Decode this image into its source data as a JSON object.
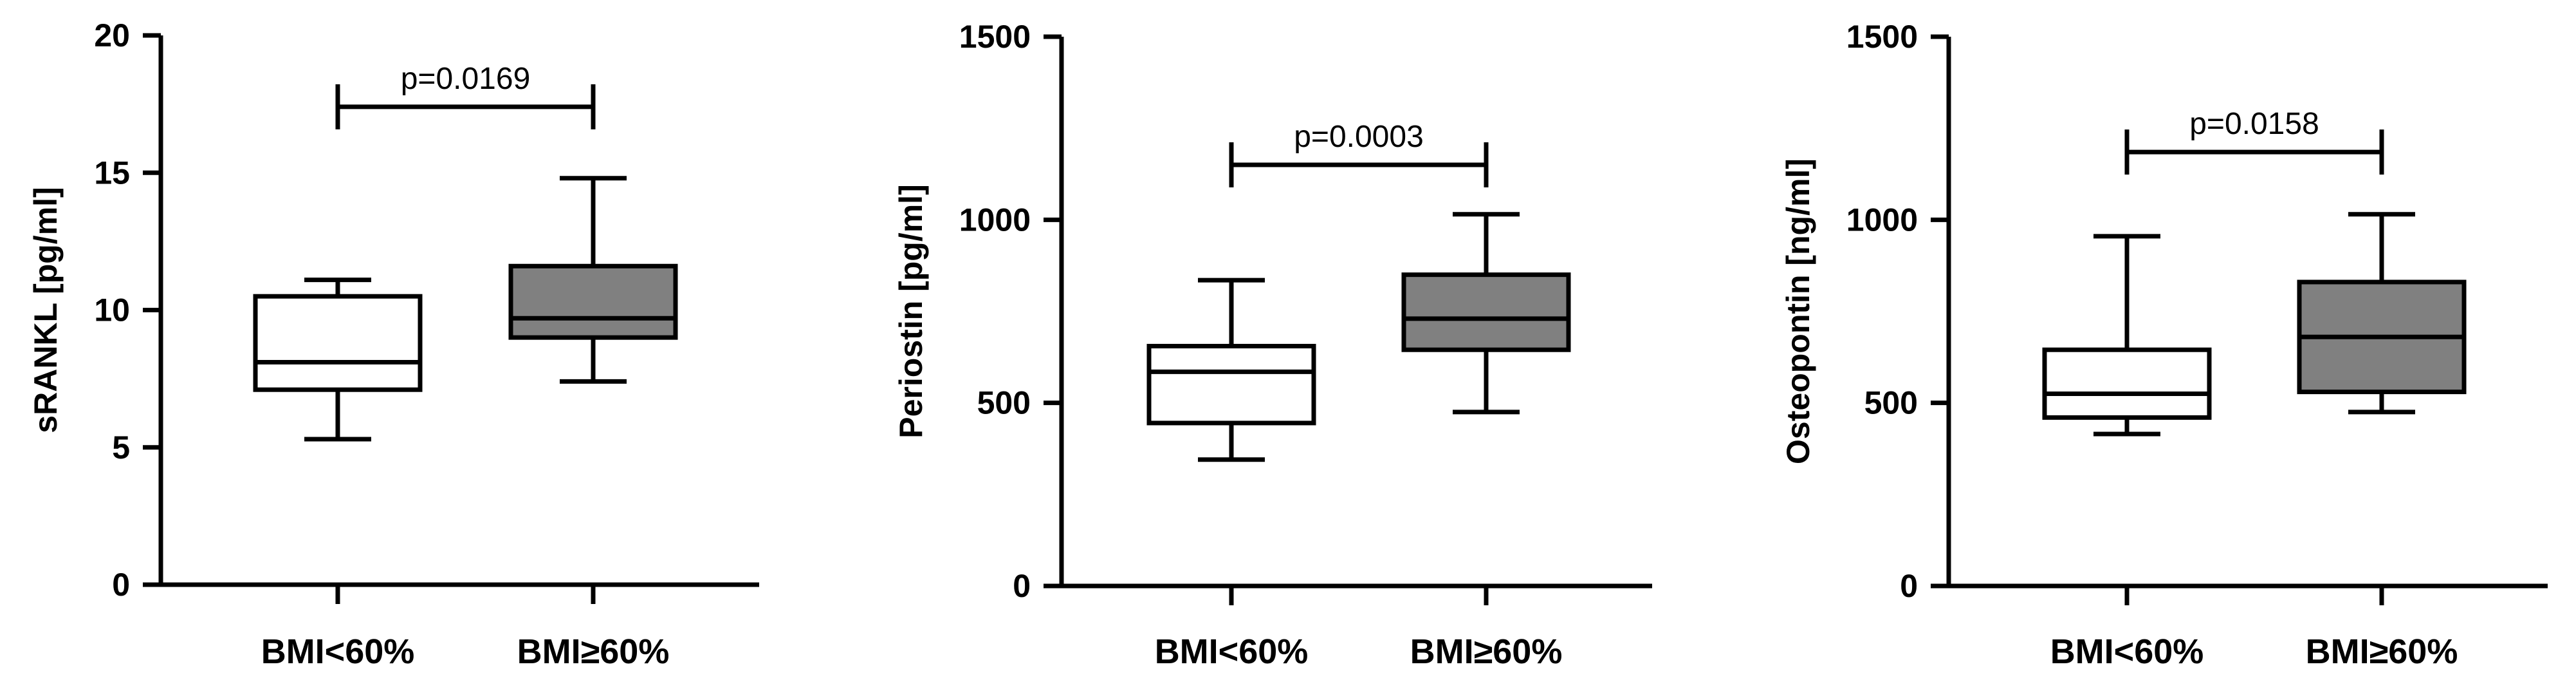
{
  "chart_data": [
    {
      "type": "box",
      "ylabel": "sRANKL [pg/ml]",
      "ylim": [
        0,
        20
      ],
      "yticks": [
        0,
        5,
        10,
        15,
        20
      ],
      "categories": [
        "BMI<60%",
        "BMI≥60%"
      ],
      "boxes": [
        {
          "category": "BMI<60%",
          "min": 5.3,
          "q1": 7.1,
          "median": 8.1,
          "q3": 10.5,
          "max": 11.1,
          "fill": "#ffffff"
        },
        {
          "category": "BMI≥60%",
          "min": 7.4,
          "q1": 9.0,
          "median": 9.7,
          "q3": 11.6,
          "max": 14.8,
          "fill": "#808080"
        }
      ],
      "annotation": {
        "text": "p=0.0169",
        "y": 17.4
      }
    },
    {
      "type": "box",
      "ylabel": "Periostin [pg/ml]",
      "ylim": [
        0,
        1500
      ],
      "yticks": [
        0,
        500,
        1000,
        1500
      ],
      "categories": [
        "BMI<60%",
        "BMI≥60%"
      ],
      "boxes": [
        {
          "category": "BMI<60%",
          "min": 345,
          "q1": 445,
          "median": 585,
          "q3": 655,
          "max": 835,
          "fill": "#ffffff"
        },
        {
          "category": "BMI≥60%",
          "min": 475,
          "q1": 645,
          "median": 730,
          "q3": 850,
          "max": 1015,
          "fill": "#808080"
        }
      ],
      "annotation": {
        "text": "p=0.0003",
        "y": 1150
      }
    },
    {
      "type": "box",
      "ylabel": "Osteopontin [ng/ml]",
      "ylim": [
        0,
        1500
      ],
      "yticks": [
        0,
        500,
        1000,
        1500
      ],
      "categories": [
        "BMI<60%",
        "BMI≥60%"
      ],
      "boxes": [
        {
          "category": "BMI<60%",
          "min": 415,
          "q1": 460,
          "median": 525,
          "q3": 645,
          "max": 955,
          "fill": "#ffffff"
        },
        {
          "category": "BMI≥60%",
          "min": 475,
          "q1": 530,
          "median": 680,
          "q3": 830,
          "max": 1015,
          "fill": "#808080"
        }
      ],
      "annotation": {
        "text": "p=0.0158",
        "y": 1185
      }
    }
  ]
}
